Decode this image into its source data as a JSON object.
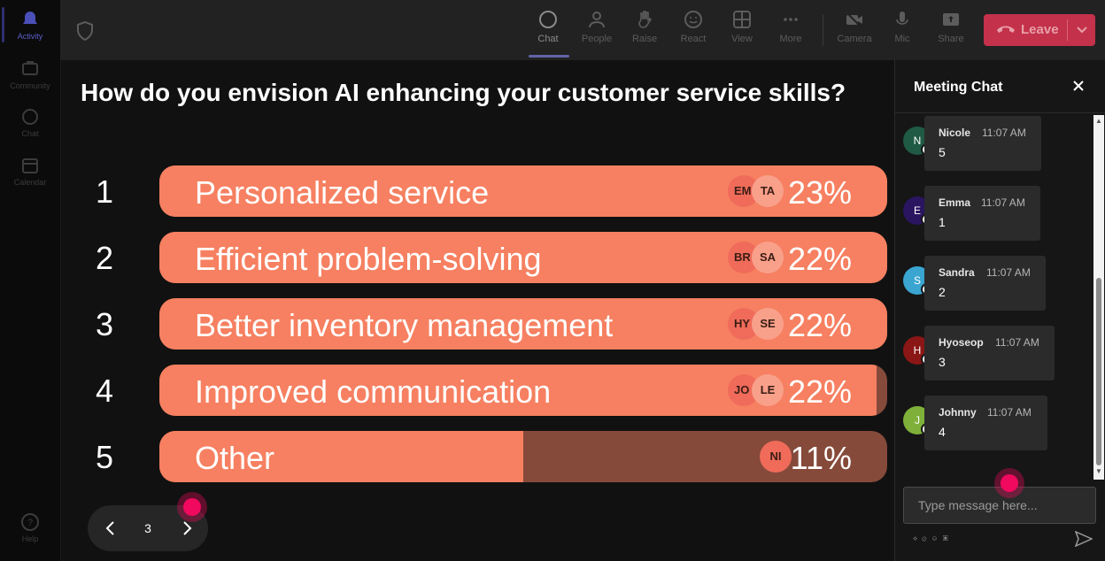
{
  "rail": {
    "items": [
      {
        "label": "Activity",
        "icon": "bell-icon"
      },
      {
        "label": "Community",
        "icon": "community-icon"
      },
      {
        "label": "Chat",
        "icon": "chat-icon"
      },
      {
        "label": "Calendar",
        "icon": "calendar-icon"
      }
    ],
    "help_label": "Help"
  },
  "toolbar": {
    "items": [
      {
        "label": "Chat",
        "icon": "chat-icon"
      },
      {
        "label": "People",
        "icon": "people-icon"
      },
      {
        "label": "Raise",
        "icon": "hand-icon"
      },
      {
        "label": "React",
        "icon": "smile-icon"
      },
      {
        "label": "View",
        "icon": "grid-icon"
      },
      {
        "label": "More",
        "icon": "more-icon"
      },
      {
        "label": "Camera",
        "icon": "camera-off-icon"
      },
      {
        "label": "Mic",
        "icon": "mic-icon"
      },
      {
        "label": "Share",
        "icon": "share-icon"
      }
    ],
    "leave_label": "Leave",
    "leave_color": "#c4314b"
  },
  "poll": {
    "question": "How do you envision AI enhancing your customer service skills?",
    "options": [
      {
        "num": "1",
        "label": "Personalized service",
        "percent": "23%",
        "fill": 1.0,
        "avatars": [
          "EM",
          "TA"
        ]
      },
      {
        "num": "2",
        "label": "Efficient problem-solving",
        "percent": "22%",
        "fill": 1.0,
        "avatars": [
          "BR",
          "SA"
        ]
      },
      {
        "num": "3",
        "label": "Better inventory management",
        "percent": "22%",
        "fill": 1.0,
        "avatars": [
          "HY",
          "SE"
        ]
      },
      {
        "num": "4",
        "label": "Improved communication",
        "percent": "22%",
        "fill": 0.985,
        "avatars": [
          "JO",
          "LE"
        ]
      },
      {
        "num": "5",
        "label": "Other",
        "percent": "11%",
        "fill": 0.5,
        "avatars": [
          "NI"
        ]
      }
    ],
    "bar_color": "#f68061",
    "bar_bg_color": "#854a3a"
  },
  "pager": {
    "page": "3"
  },
  "chat": {
    "title": "Meeting Chat",
    "messages": [
      {
        "initial": "N",
        "name": "Nicole",
        "time": "11:07 AM",
        "text": "5",
        "color": "#1f5a44"
      },
      {
        "initial": "E",
        "name": "Emma",
        "time": "11:07 AM",
        "text": "1",
        "color": "#2a1560"
      },
      {
        "initial": "S",
        "name": "Sandra",
        "time": "11:07 AM",
        "text": "2",
        "color": "#3aa5d0"
      },
      {
        "initial": "H",
        "name": "Hyoseop",
        "time": "11:07 AM",
        "text": "3",
        "color": "#8b1616"
      },
      {
        "initial": "J",
        "name": "Johnny",
        "time": "11:07 AM",
        "text": "4",
        "color": "#7fb13a"
      }
    ],
    "input_placeholder": "Type message here..."
  }
}
